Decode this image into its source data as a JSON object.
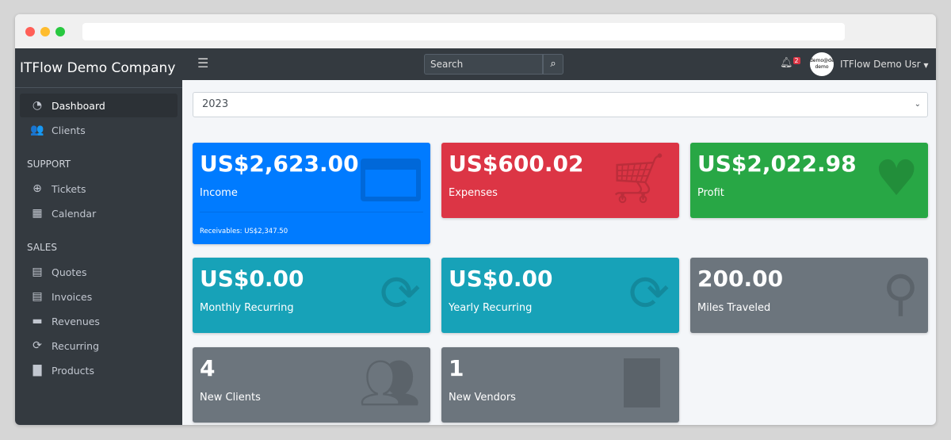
{
  "sidebar": {
    "brand": "ITFlow Demo Company",
    "items": [
      {
        "label": "Dashboard",
        "icon": "tachometer-icon",
        "active": true
      },
      {
        "label": "Clients",
        "icon": "users-icon"
      }
    ],
    "support_header": "SUPPORT",
    "support": [
      {
        "label": "Tickets",
        "icon": "life-ring-icon"
      },
      {
        "label": "Calendar",
        "icon": "calendar-icon"
      }
    ],
    "sales_header": "SALES",
    "sales": [
      {
        "label": "Quotes",
        "icon": "file-icon"
      },
      {
        "label": "Invoices",
        "icon": "invoice-icon"
      },
      {
        "label": "Revenues",
        "icon": "credit-card-icon"
      },
      {
        "label": "Recurring",
        "icon": "sync-icon"
      },
      {
        "label": "Products",
        "icon": "box-icon"
      }
    ]
  },
  "topnav": {
    "search_placeholder": "Search",
    "notifications": "2",
    "avatar_text": "demo@demo demo",
    "user": "ITFlow Demo Usr"
  },
  "year": "2023",
  "colors": {
    "income": "#007bff",
    "expenses": "#dc3545",
    "profit": "#28a745",
    "recurring": "#17a2b8",
    "gray": "#6c757d"
  },
  "cards": [
    {
      "value": "US$2,623.00",
      "label": "Income",
      "footer": "Receivables: US$2,347.50",
      "icon": "credit-card-icon"
    },
    {
      "value": "US$600.02",
      "label": "Expenses",
      "icon": "shopping-cart-icon"
    },
    {
      "value": "US$2,022.98",
      "label": "Profit",
      "icon": "heart-icon"
    },
    {
      "value": "US$0.00",
      "label": "Monthly Recurring",
      "icon": "sync-icon"
    },
    {
      "value": "US$0.00",
      "label": "Yearly Recurring",
      "icon": "sync-icon"
    },
    {
      "value": "200.00",
      "label": "Miles Traveled",
      "icon": "route-icon"
    },
    {
      "value": "4",
      "label": "New Clients",
      "icon": "users-icon"
    },
    {
      "value": "1",
      "label": "New Vendors",
      "icon": "building-icon"
    }
  ]
}
